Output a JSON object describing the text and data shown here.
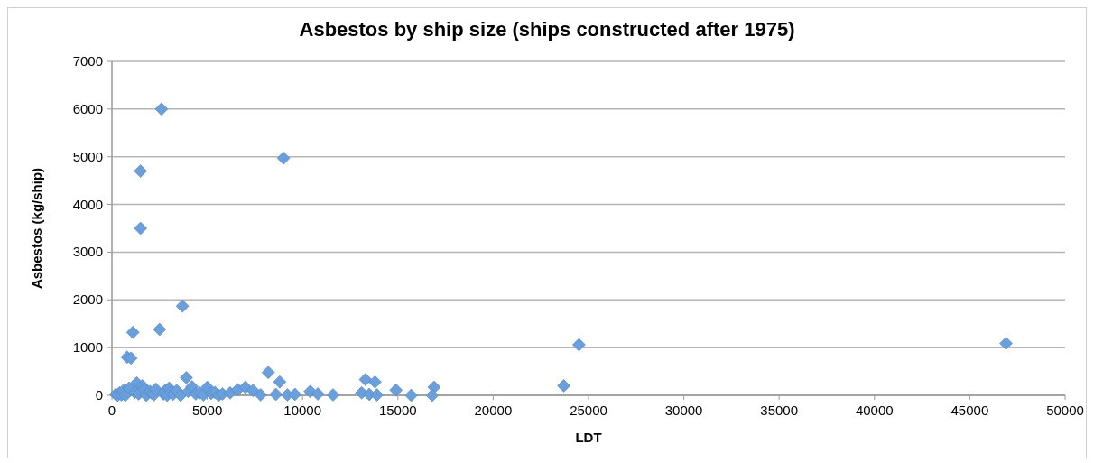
{
  "chart_data": {
    "type": "scatter",
    "title": "Asbestos by ship size (ships constructed after 1975)",
    "xlabel": "LDT",
    "ylabel": "Asbestos (kg/ship)",
    "xlim": [
      0,
      50000
    ],
    "xticks": [
      0,
      5000,
      10000,
      15000,
      20000,
      25000,
      30000,
      35000,
      40000,
      45000,
      50000
    ],
    "ylim": [
      0,
      7000
    ],
    "yticks": [
      0,
      1000,
      2000,
      3000,
      4000,
      5000,
      6000,
      7000
    ],
    "grid": "y",
    "marker": "diamond",
    "series": [
      {
        "color": "#6a9fdc",
        "x": [
          2600,
          1500,
          9000,
          1500,
          3700,
          2500,
          1100,
          800,
          1000,
          24500,
          46900,
          23700,
          8200,
          8800,
          3900,
          13300,
          13800,
          16900,
          14900,
          1300,
          1600,
          200,
          300,
          400,
          500,
          600,
          700,
          900,
          1200,
          1400,
          1700,
          1800,
          2000,
          2100,
          2200,
          2300,
          2700,
          2800,
          2900,
          3000,
          3100,
          3200,
          3400,
          3600,
          4000,
          4200,
          4400,
          4600,
          4800,
          5000,
          5200,
          5400,
          5600,
          5800,
          6200,
          6600,
          7000,
          7400,
          7800,
          8600,
          9200,
          9600,
          10400,
          10800,
          11600,
          13100,
          13500,
          13900,
          15700,
          16800
        ],
        "values": [
          6000,
          4700,
          4970,
          3500,
          1870,
          1380,
          1320,
          800,
          780,
          1060,
          1090,
          200,
          480,
          280,
          370,
          330,
          280,
          170,
          110,
          260,
          200,
          20,
          0,
          50,
          10,
          100,
          0,
          150,
          60,
          30,
          120,
          0,
          80,
          40,
          10,
          130,
          30,
          100,
          0,
          150,
          60,
          20,
          100,
          0,
          80,
          180,
          30,
          50,
          10,
          170,
          40,
          60,
          0,
          30,
          50,
          120,
          170,
          100,
          10,
          20,
          10,
          20,
          80,
          30,
          10,
          50,
          20,
          10,
          0,
          0
        ]
      }
    ]
  }
}
